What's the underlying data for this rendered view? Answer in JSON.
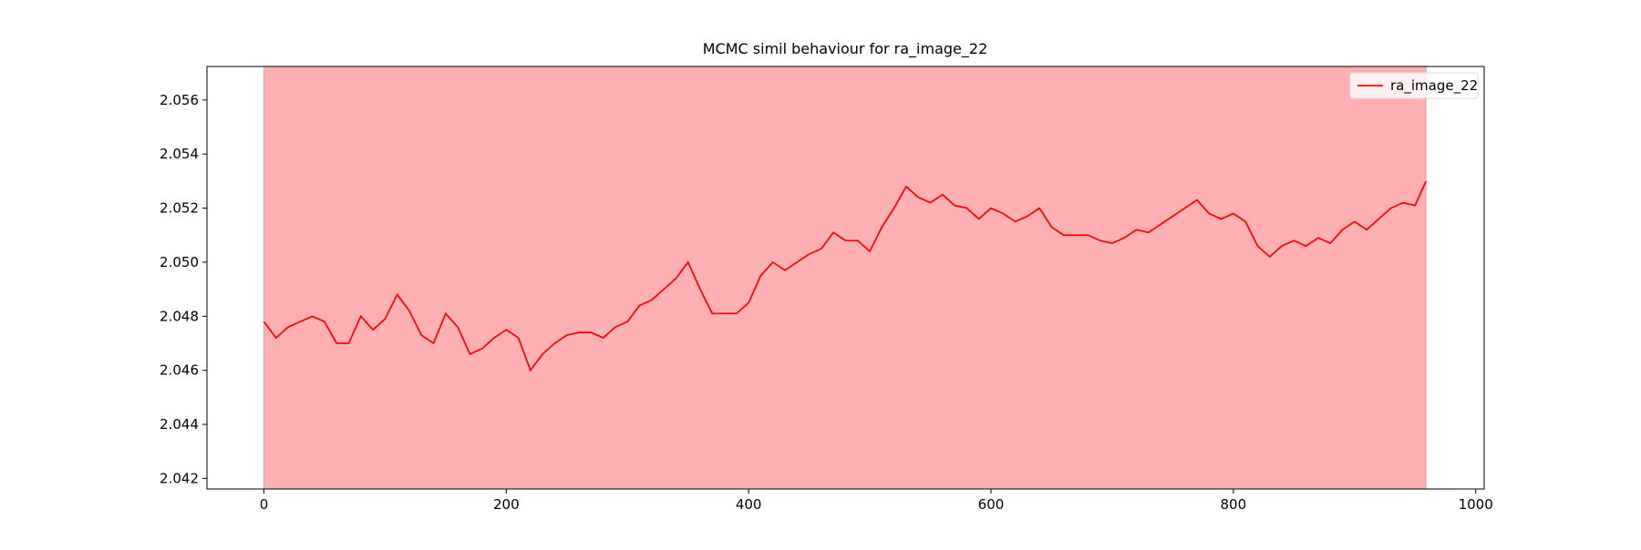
{
  "chart_data": {
    "type": "line",
    "title": "MCMC simil behaviour for ra_image_22",
    "x": [
      0,
      10,
      20,
      30,
      40,
      50,
      60,
      70,
      80,
      90,
      100,
      110,
      120,
      130,
      140,
      150,
      160,
      170,
      180,
      190,
      200,
      210,
      220,
      230,
      240,
      250,
      260,
      270,
      280,
      290,
      300,
      310,
      320,
      330,
      340,
      350,
      360,
      370,
      380,
      390,
      400,
      410,
      420,
      430,
      440,
      450,
      460,
      470,
      480,
      490,
      500,
      510,
      520,
      530,
      540,
      550,
      560,
      570,
      580,
      590,
      600,
      610,
      620,
      630,
      640,
      650,
      660,
      670,
      680,
      690,
      700,
      710,
      720,
      730,
      740,
      750,
      760,
      770,
      780,
      790,
      800,
      810,
      820,
      830,
      840,
      850,
      860,
      870,
      880,
      890,
      900,
      910,
      920,
      930,
      940,
      950,
      959
    ],
    "series": [
      {
        "name": "ra_image_22",
        "color": "#ff0000",
        "values": [
          2.0478,
          2.0472,
          2.0476,
          2.0478,
          2.048,
          2.0478,
          2.047,
          2.047,
          2.048,
          2.0475,
          2.0479,
          2.0488,
          2.0482,
          2.0473,
          2.047,
          2.0481,
          2.0476,
          2.0466,
          2.0468,
          2.0472,
          2.0475,
          2.0472,
          2.046,
          2.0466,
          2.047,
          2.0473,
          2.0474,
          2.0474,
          2.0472,
          2.0476,
          2.0478,
          2.0484,
          2.0486,
          2.049,
          2.0494,
          2.05,
          2.049,
          2.0481,
          2.0481,
          2.0481,
          2.0485,
          2.0495,
          2.05,
          2.0497,
          2.05,
          2.0503,
          2.0505,
          2.0511,
          2.0508,
          2.0508,
          2.0504,
          2.0513,
          2.052,
          2.0528,
          2.0524,
          2.0522,
          2.0525,
          2.0521,
          2.052,
          2.0516,
          2.052,
          2.0518,
          2.0515,
          2.0517,
          2.052,
          2.0513,
          2.051,
          2.051,
          2.051,
          2.0508,
          2.0507,
          2.0509,
          2.0512,
          2.0511,
          2.0514,
          2.0517,
          2.052,
          2.0523,
          2.0518,
          2.0516,
          2.0518,
          2.0515,
          2.0506,
          2.0502,
          2.0506,
          2.0508,
          2.0506,
          2.0509,
          2.0507,
          2.0512,
          2.0515,
          2.0512,
          2.0516,
          2.052,
          2.0522,
          2.0521,
          2.053
        ]
      }
    ],
    "span": [
      0,
      959
    ],
    "span_color": "#ffb0b2",
    "xlim": [
      -47,
      1007
    ],
    "ylim": [
      2.04161,
      2.05724
    ],
    "xticks": [
      0,
      200,
      400,
      600,
      800,
      1000
    ],
    "yticks": [
      2.042,
      2.044,
      2.046,
      2.048,
      {
        "value": 2.05,
        "label": "2.050"
      },
      2.052,
      2.054,
      2.056
    ],
    "legend": "upper right"
  }
}
